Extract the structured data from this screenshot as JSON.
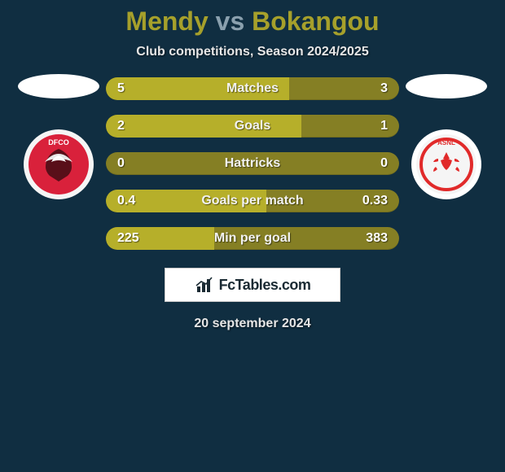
{
  "background_color": "#102e41",
  "title": {
    "player_a": "Mendy",
    "vs": "vs",
    "player_b": "Bokangou",
    "color_a": "#a6a02b",
    "color_vs": "#8aa0ae",
    "color_b": "#a6a02b",
    "fontsize": 32
  },
  "subtitle": "Club competitions, Season 2024/2025",
  "players": {
    "left": {
      "face_placeholder_color": "#ffffff",
      "club_name_short": "DFCO",
      "club_bg": "#d9213b",
      "club_ring": "#f5f5f5",
      "club_detail": "#4a0d16"
    },
    "right": {
      "face_placeholder_color": "#ffffff",
      "club_name_short": "ASNL",
      "club_bg": "#f5f5f5",
      "club_ring": "#ffffff",
      "club_detail": "#e12a2a"
    }
  },
  "bars": {
    "track_color": "#857f24",
    "fill_color": "#b6af2a",
    "rows": [
      {
        "label": "Matches",
        "left": "5",
        "right": "3",
        "fill_pct": 62.5
      },
      {
        "label": "Goals",
        "left": "2",
        "right": "1",
        "fill_pct": 66.7
      },
      {
        "label": "Hattricks",
        "left": "0",
        "right": "0",
        "fill_pct": 0.0
      },
      {
        "label": "Goals per match",
        "left": "0.4",
        "right": "0.33",
        "fill_pct": 54.8
      },
      {
        "label": "Min per goal",
        "left": "225",
        "right": "383",
        "fill_pct": 37.0
      }
    ]
  },
  "brand": {
    "text": "FcTables.com",
    "bg": "#ffffff",
    "text_color": "#1a2a33"
  },
  "date": "20 september 2024"
}
